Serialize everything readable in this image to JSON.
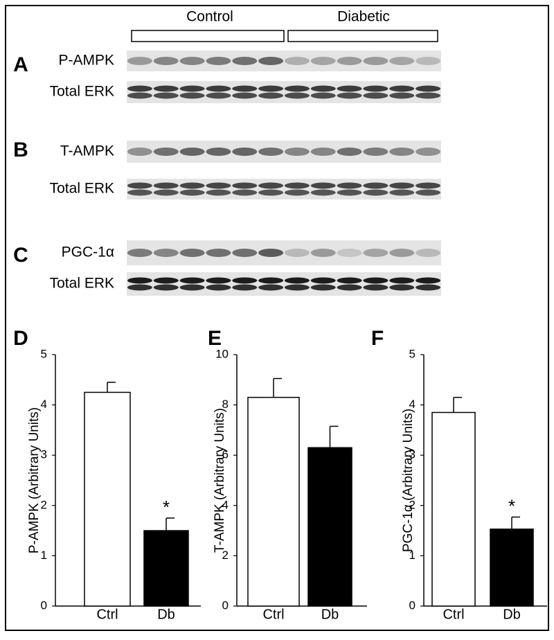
{
  "blots": {
    "groups": [
      "Control",
      "Diabetic"
    ],
    "panels": [
      {
        "letter": "A",
        "rows": [
          "P-AMPK",
          "Total ERK"
        ]
      },
      {
        "letter": "B",
        "rows": [
          "T-AMPK",
          "Total ERK"
        ]
      },
      {
        "letter": "C",
        "rows": [
          "PGC-1α",
          "Total ERK"
        ]
      }
    ]
  },
  "chart_data": [
    {
      "type": "bar",
      "panel": "D",
      "ylabel": "P-AMPK (Arbitrary Units)",
      "categories": [
        "Ctrl",
        "Db"
      ],
      "values": [
        4.25,
        1.5
      ],
      "errors": [
        0.2,
        0.25
      ],
      "colors": [
        "#ffffff",
        "#000000"
      ],
      "significance": [
        null,
        "*"
      ],
      "ylim": [
        0,
        5
      ],
      "yticks": [
        0,
        1,
        2,
        3,
        4,
        5
      ]
    },
    {
      "type": "bar",
      "panel": "E",
      "ylabel": "T-AMPK (Arbitrary Units)",
      "categories": [
        "Ctrl",
        "Db"
      ],
      "values": [
        8.3,
        6.3
      ],
      "errors": [
        0.75,
        0.85
      ],
      "colors": [
        "#ffffff",
        "#000000"
      ],
      "significance": [
        null,
        null
      ],
      "ylim": [
        0,
        10
      ],
      "yticks": [
        0,
        2,
        4,
        6,
        8,
        10
      ]
    },
    {
      "type": "bar",
      "panel": "F",
      "ylabel": "PGC-1α (Arbitrary Units)",
      "categories": [
        "Ctrl",
        "Db"
      ],
      "values": [
        3.85,
        1.53
      ],
      "errors": [
        0.3,
        0.24
      ],
      "colors": [
        "#ffffff",
        "#000000"
      ],
      "significance": [
        null,
        "*"
      ],
      "ylim": [
        0,
        5
      ],
      "yticks": [
        0,
        1,
        2,
        3,
        4,
        5
      ]
    }
  ]
}
